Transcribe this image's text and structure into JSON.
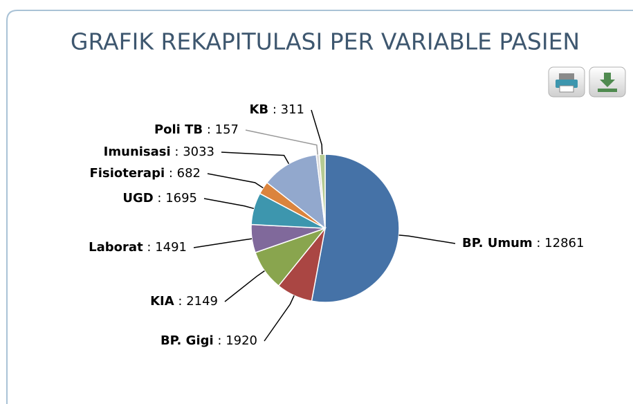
{
  "chart_data": {
    "type": "pie",
    "title": "GRAFIK REKAPITULASI PER VARIABLE PASIEN",
    "categories": [
      "BP. Umum",
      "BP. Gigi",
      "KIA",
      "Laborat",
      "UGD",
      "Fisioterapi",
      "Imunisasi",
      "Poli TB",
      "KB"
    ],
    "values": [
      12861,
      1920,
      2149,
      1491,
      1695,
      682,
      3033,
      157,
      311
    ],
    "colors": [
      "#4572A7",
      "#AA4643",
      "#89A54E",
      "#80699B",
      "#3D96AE",
      "#DB843D",
      "#92A8CD",
      "#D9D9D9",
      "#B5CA92"
    ],
    "label_separator": " : "
  }
}
